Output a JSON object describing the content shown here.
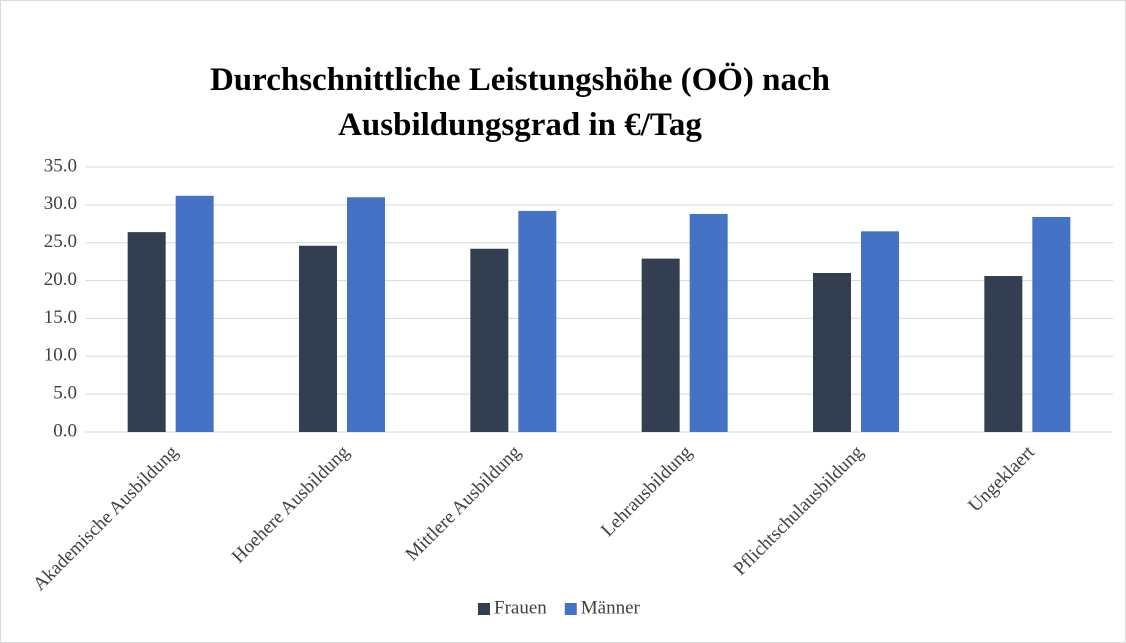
{
  "chart_data": {
    "type": "bar",
    "title": "Durchschnittliche Leistungshöhe (OÖ) nach Ausbildungsgrad in €/Tag",
    "categories": [
      "Akademische Ausbildung",
      "Hoehere Ausbildung",
      "Mittlere Ausbildung",
      "Lehrausbildung",
      "Pflichtschulausbildung",
      "Ungeklaert"
    ],
    "series": [
      {
        "name": "Frauen",
        "color": "#333f50",
        "values": [
          26.4,
          24.6,
          24.2,
          22.9,
          21.0,
          20.6
        ]
      },
      {
        "name": "Männer",
        "color": "#4472c4",
        "values": [
          31.2,
          31.0,
          29.2,
          28.8,
          26.5,
          28.4
        ]
      }
    ],
    "ylim": [
      0,
      35
    ],
    "yticks": [
      {
        "value": 0,
        "label": "0.0"
      },
      {
        "value": 5,
        "label": "5.0"
      },
      {
        "value": 10,
        "label": "10.0"
      },
      {
        "value": 15,
        "label": "15.0"
      },
      {
        "value": 20,
        "label": "20.0"
      },
      {
        "value": 25,
        "label": "25.0"
      },
      {
        "value": 30,
        "label": "30.0"
      },
      {
        "value": 35,
        "label": "35.0"
      }
    ],
    "grid": true,
    "legend": "bottom"
  }
}
